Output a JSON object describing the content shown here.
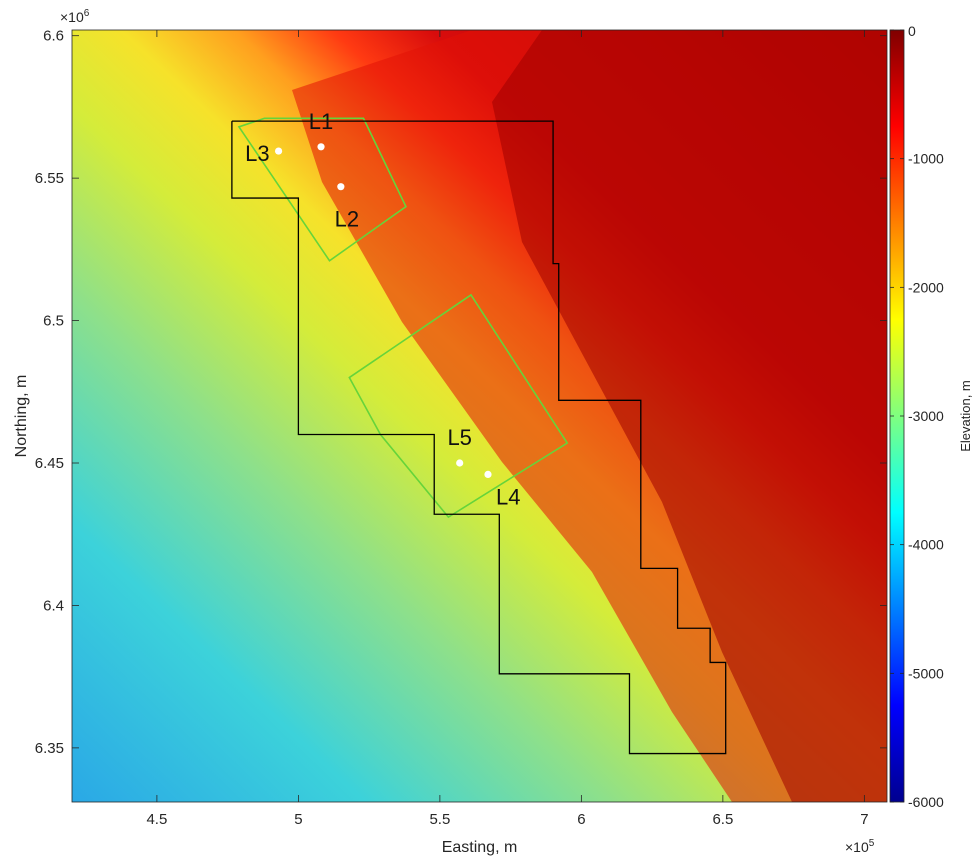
{
  "chart_data": {
    "type": "heatmap",
    "xlabel": "Easting, m",
    "ylabel": "Northing, m",
    "x_exponent_label": "×10",
    "x_exponent": "5",
    "y_exponent_label": "×10",
    "y_exponent": "6",
    "xlim": [
      420000,
      708000
    ],
    "ylim": [
      6331000,
      6602000
    ],
    "x_ticks": [
      450000,
      500000,
      550000,
      600000,
      650000,
      700000
    ],
    "x_tick_labels": [
      "4.5",
      "5",
      "5.5",
      "6",
      "6.5",
      "7"
    ],
    "y_ticks": [
      6350000,
      6400000,
      6450000,
      6500000,
      6550000,
      6600000
    ],
    "y_tick_labels": [
      "6.35",
      "6.4",
      "6.45",
      "6.5",
      "6.55",
      "6.6"
    ],
    "colorbar": {
      "label": "Elevation, m",
      "clim": [
        -6000,
        0
      ],
      "colormap": "jet",
      "ticks": [
        0,
        -1000,
        -2000,
        -3000,
        -4000,
        -5000,
        -6000
      ],
      "tick_labels": [
        "0",
        "-1000",
        "-2000",
        "-3000",
        "-4000",
        "-5000",
        "-6000"
      ]
    },
    "boundary_black": {
      "color": "#000000",
      "points": [
        [
          476500,
          6570000
        ],
        [
          590000,
          6570000
        ],
        [
          590000,
          6520000
        ],
        [
          592000,
          6520000
        ],
        [
          592000,
          6472000
        ],
        [
          621000,
          6472000
        ],
        [
          621000,
          6413000
        ],
        [
          634000,
          6413000
        ],
        [
          634000,
          6392000
        ],
        [
          645500,
          6392000
        ],
        [
          645500,
          6380000
        ],
        [
          651000,
          6380000
        ],
        [
          651000,
          6348000
        ],
        [
          617000,
          6348000
        ],
        [
          617000,
          6376000
        ],
        [
          571000,
          6376000
        ],
        [
          571000,
          6432000
        ],
        [
          548000,
          6432000
        ],
        [
          548000,
          6460000
        ],
        [
          500000,
          6460000
        ],
        [
          500000,
          6543000
        ],
        [
          476500,
          6543000
        ],
        [
          476500,
          6570000
        ]
      ]
    },
    "polygons_green": {
      "color": "#66d43a",
      "shapes": [
        [
          [
            488000,
            6571000
          ],
          [
            523000,
            6571000
          ],
          [
            538000,
            6540000
          ],
          [
            511000,
            6521000
          ],
          [
            479000,
            6568000
          ],
          [
            488000,
            6571000
          ]
        ],
        [
          [
            561000,
            6509000
          ],
          [
            595000,
            6457000
          ],
          [
            553000,
            6431000
          ],
          [
            529000,
            6460000
          ],
          [
            518000,
            6480000
          ],
          [
            561000,
            6509000
          ]
        ]
      ]
    },
    "points": [
      {
        "label": "L1",
        "x": 508000,
        "y": 6561000,
        "label_anchor": "above"
      },
      {
        "label": "L2",
        "x": 515000,
        "y": 6547000,
        "label_anchor": "below"
      },
      {
        "label": "L3",
        "x": 493000,
        "y": 6559500,
        "label_anchor": "left"
      },
      {
        "label": "L4",
        "x": 567000,
        "y": 6446000,
        "label_anchor": "below-right"
      },
      {
        "label": "L5",
        "x": 557000,
        "y": 6450000,
        "label_anchor": "above"
      }
    ]
  }
}
